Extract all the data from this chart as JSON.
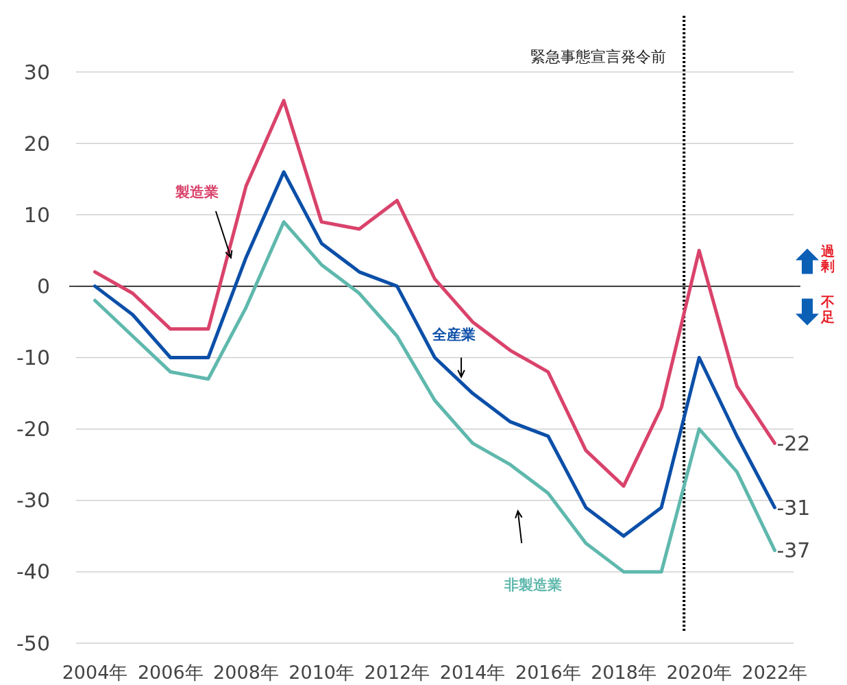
{
  "chart_data": {
    "type": "line",
    "x": [
      2004,
      2005,
      2006,
      2007,
      2008,
      2009,
      2010,
      2011,
      2012,
      2013,
      2014,
      2015,
      2016,
      2017,
      2018,
      2019,
      2020,
      2021,
      2022
    ],
    "xlim": [
      2003.5,
      2022.5
    ],
    "xticks": [
      {
        "value": 2004,
        "label": "2004年"
      },
      {
        "value": 2006,
        "label": "2006年"
      },
      {
        "value": 2008,
        "label": "2008年"
      },
      {
        "value": 2010,
        "label": "2010年"
      },
      {
        "value": 2012,
        "label": "2012年"
      },
      {
        "value": 2014,
        "label": "2014年"
      },
      {
        "value": 2016,
        "label": "2016年"
      },
      {
        "value": 2018,
        "label": "2018年"
      },
      {
        "value": 2020,
        "label": "2020年"
      },
      {
        "value": 2022,
        "label": "2022年"
      }
    ],
    "ylim": [
      -50,
      30
    ],
    "yticks": [
      -50,
      -40,
      -30,
      -20,
      -10,
      0,
      10,
      20,
      30
    ],
    "grid": "y",
    "marker": "none",
    "line_style": "solid",
    "series": [
      {
        "name": "製造業",
        "color": "#d9436b",
        "values": [
          2,
          -1,
          -6,
          -6,
          14,
          26,
          9,
          8,
          12,
          1,
          -5,
          -9,
          -12,
          -23,
          -28,
          -17,
          5,
          -14,
          -22
        ],
        "value_labels": [
          null,
          null,
          null,
          null,
          null,
          null,
          null,
          null,
          null,
          null,
          null,
          null,
          null,
          null,
          null,
          null,
          null,
          null,
          "-22"
        ]
      },
      {
        "name": "全産業",
        "color": "#0b4fa8",
        "values": [
          0,
          -4,
          -10,
          -10,
          4,
          16,
          6,
          2,
          0,
          -10,
          -15,
          -19,
          -21,
          -31,
          -35,
          -31,
          -10,
          -21,
          -31
        ],
        "value_labels": [
          null,
          null,
          null,
          null,
          null,
          null,
          null,
          null,
          null,
          null,
          null,
          null,
          null,
          null,
          null,
          null,
          null,
          null,
          "-31"
        ]
      },
      {
        "name": "非製造業",
        "color": "#5fb8ad",
        "values": [
          -2,
          -7,
          -12,
          -13,
          -3,
          9,
          3,
          -1,
          -7,
          -16,
          -22,
          -25,
          -29,
          -36,
          -40,
          -40,
          -20,
          -26,
          -37
        ],
        "value_labels": [
          null,
          null,
          null,
          null,
          null,
          null,
          null,
          null,
          null,
          null,
          null,
          null,
          null,
          null,
          null,
          null,
          null,
          null,
          "-37"
        ]
      }
    ],
    "ref_lines": [
      {
        "axis": "y",
        "value": 0,
        "color": "#000000",
        "line_style": "solid"
      },
      {
        "axis": "x",
        "value": 2019.6,
        "label": "緊急事態宣言発令前",
        "color": "#000000",
        "line_style": "dotted"
      }
    ],
    "annotations": [
      "過剰",
      "不足"
    ]
  }
}
